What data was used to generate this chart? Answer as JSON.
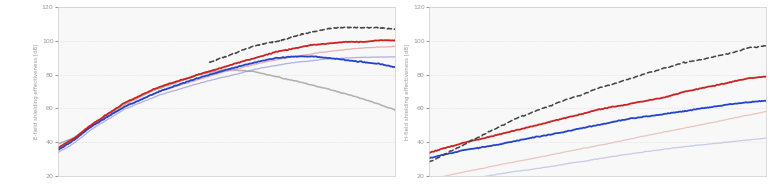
{
  "chart1": {
    "ylabel": "E-field shielding effectiveness [dB]",
    "ylim": [
      20,
      120
    ],
    "yticks": [
      20,
      40,
      60,
      80,
      100,
      120
    ],
    "lines": {
      "gray": {
        "color": "#b0b0b0",
        "linewidth": 1.1,
        "alpha": 1.0,
        "points": [
          [
            0,
            38
          ],
          [
            0.05,
            42
          ],
          [
            0.1,
            49
          ],
          [
            0.15,
            56
          ],
          [
            0.2,
            62
          ],
          [
            0.28,
            70
          ],
          [
            0.35,
            75
          ],
          [
            0.42,
            80
          ],
          [
            0.5,
            83
          ],
          [
            0.58,
            82
          ],
          [
            0.65,
            79
          ],
          [
            0.72,
            76
          ],
          [
            0.8,
            72
          ],
          [
            0.88,
            68
          ],
          [
            1.0,
            60
          ]
        ]
      },
      "light_blue": {
        "color": "#9090d8",
        "linewidth": 0.9,
        "alpha": 0.7,
        "points": [
          [
            0,
            34
          ],
          [
            0.05,
            40
          ],
          [
            0.1,
            48
          ],
          [
            0.2,
            60
          ],
          [
            0.3,
            68
          ],
          [
            0.4,
            74
          ],
          [
            0.5,
            79
          ],
          [
            0.6,
            84
          ],
          [
            0.7,
            87
          ],
          [
            0.8,
            89
          ],
          [
            0.9,
            90
          ],
          [
            1.0,
            90
          ]
        ]
      },
      "light_red": {
        "color": "#e09090",
        "linewidth": 0.9,
        "alpha": 0.7,
        "points": [
          [
            0,
            35
          ],
          [
            0.05,
            41
          ],
          [
            0.1,
            49
          ],
          [
            0.2,
            61
          ],
          [
            0.3,
            70
          ],
          [
            0.4,
            76
          ],
          [
            0.5,
            82
          ],
          [
            0.6,
            87
          ],
          [
            0.7,
            91
          ],
          [
            0.8,
            94
          ],
          [
            0.9,
            96
          ],
          [
            1.0,
            97
          ]
        ]
      },
      "blue": {
        "color": "#2244cc",
        "linewidth": 1.3,
        "alpha": 1.0,
        "points": [
          [
            0,
            35
          ],
          [
            0.05,
            41
          ],
          [
            0.1,
            49
          ],
          [
            0.2,
            61
          ],
          [
            0.3,
            70
          ],
          [
            0.4,
            77
          ],
          [
            0.5,
            83
          ],
          [
            0.6,
            88
          ],
          [
            0.65,
            90
          ],
          [
            0.7,
            91
          ],
          [
            0.75,
            91
          ],
          [
            0.8,
            90
          ],
          [
            0.85,
            89
          ],
          [
            0.9,
            88
          ],
          [
            0.95,
            87
          ],
          [
            1.0,
            85
          ]
        ]
      },
      "red": {
        "color": "#cc2222",
        "linewidth": 1.3,
        "alpha": 1.0,
        "points": [
          [
            0,
            36
          ],
          [
            0.05,
            42
          ],
          [
            0.1,
            50
          ],
          [
            0.2,
            63
          ],
          [
            0.3,
            72
          ],
          [
            0.4,
            79
          ],
          [
            0.5,
            85
          ],
          [
            0.6,
            91
          ],
          [
            0.65,
            94
          ],
          [
            0.7,
            96
          ],
          [
            0.75,
            98
          ],
          [
            0.8,
            99
          ],
          [
            0.85,
            100
          ],
          [
            0.9,
            100
          ],
          [
            0.95,
            101
          ],
          [
            1.0,
            101
          ]
        ]
      },
      "black_dashed": {
        "color": "#444444",
        "linewidth": 1.1,
        "alpha": 1.0,
        "points": [
          [
            0.45,
            87
          ],
          [
            0.5,
            91
          ],
          [
            0.55,
            95
          ],
          [
            0.6,
            98
          ],
          [
            0.65,
            100
          ],
          [
            0.7,
            103
          ],
          [
            0.75,
            105
          ],
          [
            0.8,
            107
          ],
          [
            0.85,
            108
          ],
          [
            0.9,
            108
          ],
          [
            0.95,
            108
          ],
          [
            1.0,
            107
          ]
        ]
      }
    }
  },
  "chart2": {
    "ylabel": "H-field shielding effectiveness [dB]",
    "ylim": [
      20,
      120
    ],
    "yticks": [
      20,
      40,
      60,
      80,
      100,
      120
    ],
    "lines": {
      "light_blue": {
        "color": "#9090d8",
        "linewidth": 0.9,
        "alpha": 0.45,
        "points": [
          [
            0,
            15
          ],
          [
            0.2,
            21
          ],
          [
            0.4,
            27
          ],
          [
            0.6,
            33
          ],
          [
            0.8,
            38
          ],
          [
            1.0,
            42
          ]
        ]
      },
      "light_red": {
        "color": "#e09090",
        "linewidth": 0.9,
        "alpha": 0.5,
        "points": [
          [
            0,
            18
          ],
          [
            0.2,
            26
          ],
          [
            0.4,
            34
          ],
          [
            0.6,
            42
          ],
          [
            0.8,
            50
          ],
          [
            1.0,
            58
          ]
        ]
      },
      "blue": {
        "color": "#2244cc",
        "linewidth": 1.3,
        "alpha": 1.0,
        "points": [
          [
            0,
            30
          ],
          [
            0.1,
            35
          ],
          [
            0.2,
            38
          ],
          [
            0.3,
            42
          ],
          [
            0.4,
            46
          ],
          [
            0.5,
            50
          ],
          [
            0.6,
            54
          ],
          [
            0.7,
            57
          ],
          [
            0.8,
            60
          ],
          [
            0.9,
            63
          ],
          [
            1.0,
            65
          ]
        ]
      },
      "red": {
        "color": "#cc2222",
        "linewidth": 1.3,
        "alpha": 1.0,
        "points": [
          [
            0,
            33
          ],
          [
            0.1,
            39
          ],
          [
            0.2,
            44
          ],
          [
            0.3,
            49
          ],
          [
            0.4,
            54
          ],
          [
            0.5,
            59
          ],
          [
            0.6,
            63
          ],
          [
            0.7,
            67
          ],
          [
            0.75,
            70
          ],
          [
            0.8,
            72
          ],
          [
            0.85,
            74
          ],
          [
            0.9,
            76
          ],
          [
            0.95,
            78
          ],
          [
            1.0,
            79
          ]
        ]
      },
      "black_dashed": {
        "color": "#444444",
        "linewidth": 1.1,
        "alpha": 1.0,
        "points": [
          [
            0,
            28
          ],
          [
            0.05,
            33
          ],
          [
            0.1,
            38
          ],
          [
            0.15,
            43
          ],
          [
            0.2,
            48
          ],
          [
            0.25,
            53
          ],
          [
            0.3,
            57
          ],
          [
            0.35,
            61
          ],
          [
            0.4,
            65
          ],
          [
            0.45,
            68
          ],
          [
            0.5,
            72
          ],
          [
            0.55,
            75
          ],
          [
            0.6,
            78
          ],
          [
            0.65,
            81
          ],
          [
            0.7,
            84
          ],
          [
            0.75,
            87
          ],
          [
            0.8,
            89
          ],
          [
            0.85,
            91
          ],
          [
            0.9,
            93
          ],
          [
            0.95,
            96
          ],
          [
            1.0,
            97
          ]
        ]
      }
    }
  },
  "bg_color": "#f8f8f8",
  "grid_color": "#d0d0d0",
  "fig_bg": "#ffffff"
}
